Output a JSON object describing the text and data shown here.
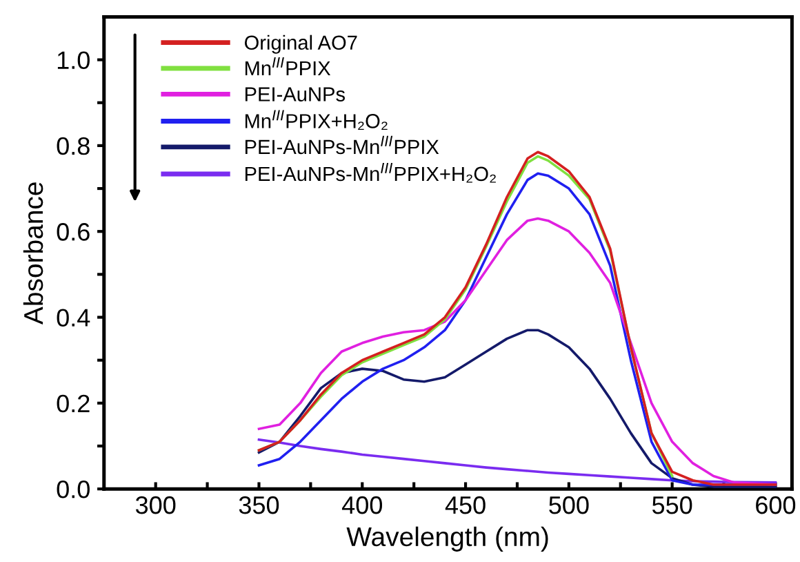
{
  "chart_data": {
    "type": "line",
    "xlabel": "Wavelength (nm)",
    "ylabel": "Absorbance",
    "xlim": [
      275,
      608
    ],
    "ylim": [
      0,
      1.1
    ],
    "xticks": [
      300,
      {
        "value": 325,
        "label": null
      },
      350,
      {
        "value": 375,
        "label": null
      },
      400,
      {
        "value": 425,
        "label": null
      },
      450,
      {
        "value": 475,
        "label": null
      },
      500,
      {
        "value": 525,
        "label": null
      },
      550,
      {
        "value": 575,
        "label": null
      },
      600
    ],
    "yticks": [
      {
        "value": 0,
        "label": "0.0"
      },
      {
        "value": 0.1,
        "label": null
      },
      {
        "value": 0.2,
        "label": "0.2"
      },
      {
        "value": 0.3,
        "label": null
      },
      {
        "value": 0.4,
        "label": "0.4"
      },
      {
        "value": 0.5,
        "label": null
      },
      {
        "value": 0.6,
        "label": "0.6"
      },
      {
        "value": 0.7,
        "label": null
      },
      {
        "value": 0.8,
        "label": "0.8"
      },
      {
        "value": 0.9,
        "label": null
      },
      {
        "value": 1.0,
        "label": "1.0"
      }
    ],
    "grid": false,
    "legend": "top left",
    "marker": "none",
    "line_style": "solid",
    "x": [
      350,
      360,
      370,
      380,
      390,
      400,
      410,
      420,
      430,
      440,
      450,
      460,
      470,
      480,
      485,
      490,
      500,
      510,
      520,
      530,
      540,
      550,
      560,
      570,
      580,
      600
    ],
    "series": [
      {
        "name": "Original AO7",
        "color": "#d42020",
        "values": [
          0.09,
          0.11,
          0.16,
          0.22,
          0.27,
          0.3,
          0.32,
          0.34,
          0.36,
          0.4,
          0.47,
          0.57,
          0.68,
          0.77,
          0.785,
          0.775,
          0.74,
          0.68,
          0.56,
          0.33,
          0.13,
          0.04,
          0.02,
          0.01,
          0.01,
          0.01
        ]
      },
      {
        "name": "Mn$^{III}$PPIX",
        "color": "#80e040",
        "values": [
          0.09,
          0.11,
          0.16,
          0.215,
          0.265,
          0.295,
          0.315,
          0.335,
          0.355,
          0.395,
          0.465,
          0.565,
          0.67,
          0.76,
          0.775,
          0.765,
          0.73,
          0.675,
          0.555,
          0.33,
          0.13,
          0.03,
          null,
          null,
          null,
          null
        ]
      },
      {
        "name": "PEI-AuNPs",
        "color": "#e020e0",
        "values": [
          0.14,
          0.15,
          0.2,
          0.27,
          0.32,
          0.34,
          0.355,
          0.365,
          0.37,
          0.39,
          0.44,
          0.51,
          0.58,
          0.625,
          0.63,
          0.625,
          0.6,
          0.55,
          0.48,
          0.34,
          0.2,
          0.11,
          0.06,
          0.03,
          0.015,
          0.01
        ]
      },
      {
        "name": "Mn$^{III}$PPIX+H₂O₂",
        "color": "#2020f0",
        "values": [
          0.055,
          0.07,
          0.11,
          0.16,
          0.21,
          0.25,
          0.28,
          0.3,
          0.33,
          0.37,
          0.44,
          0.54,
          0.64,
          0.72,
          0.735,
          0.73,
          0.7,
          0.64,
          0.52,
          0.3,
          0.11,
          0.02,
          0.01,
          0.01,
          0.01,
          0.01
        ]
      },
      {
        "name": "PEI-AuNPs-Mn$^{III}$PPIX",
        "color": "#141a6a",
        "values": [
          0.085,
          0.11,
          0.17,
          0.235,
          0.27,
          0.28,
          0.275,
          0.255,
          0.25,
          0.26,
          0.29,
          0.32,
          0.35,
          0.37,
          0.37,
          0.36,
          0.33,
          0.28,
          0.21,
          0.13,
          0.06,
          0.025,
          0.01,
          0.005,
          0.005,
          0.005
        ]
      },
      {
        "name": "PEI-AuNPs-Mn$^{III}$PPIX+H₂O₂",
        "color": "#7a2cf0",
        "values": [
          0.115,
          0.108,
          0.1,
          0.093,
          0.087,
          0.08,
          0.075,
          0.07,
          0.065,
          0.06,
          0.055,
          0.05,
          0.046,
          0.042,
          0.04,
          0.038,
          0.035,
          0.032,
          0.029,
          0.026,
          0.023,
          0.02,
          0.018,
          0.017,
          0.016,
          0.015
        ]
      }
    ]
  }
}
